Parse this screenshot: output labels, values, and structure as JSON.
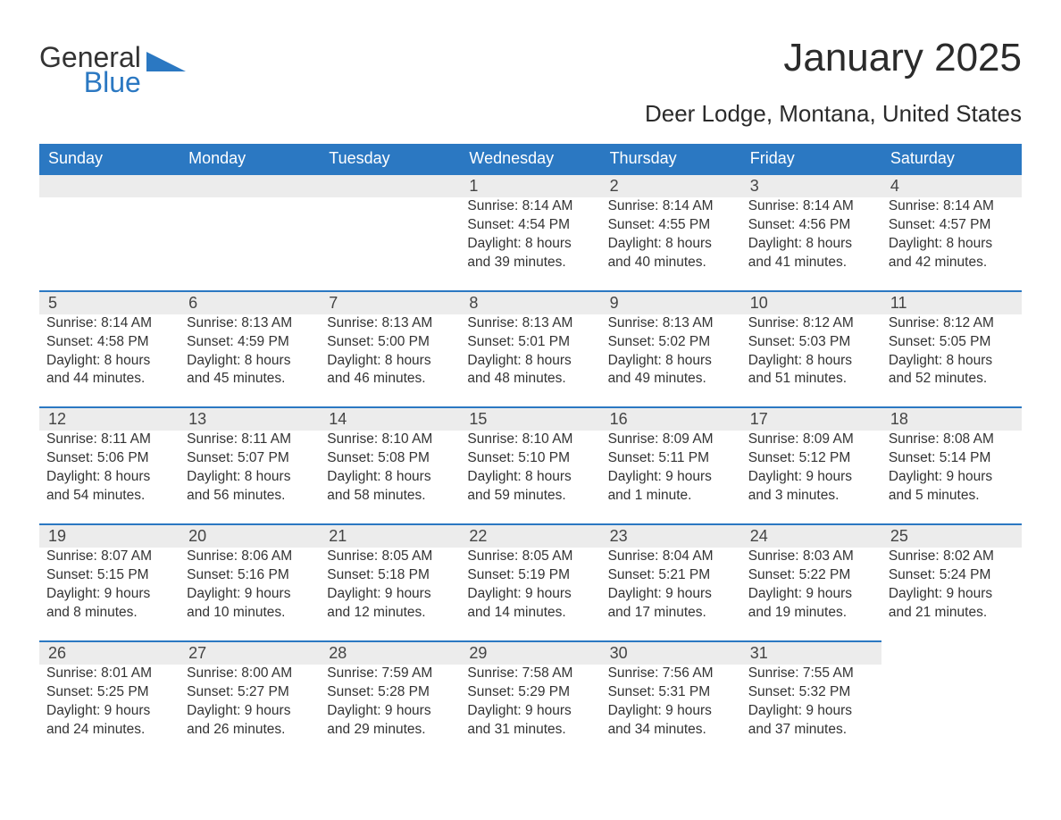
{
  "logo": {
    "word1": "General",
    "word2": "Blue",
    "shape_color": "#2b78c2"
  },
  "title": "January 2025",
  "location": "Deer Lodge, Montana, United States",
  "colors": {
    "header_bg": "#2b78c2",
    "header_text": "#ffffff",
    "daynum_bg": "#ececec",
    "daynum_border": "#2b78c2",
    "body_text": "#333333",
    "page_bg": "#ffffff"
  },
  "day_headers": [
    "Sunday",
    "Monday",
    "Tuesday",
    "Wednesday",
    "Thursday",
    "Friday",
    "Saturday"
  ],
  "weeks": [
    [
      null,
      null,
      null,
      {
        "n": "1",
        "sunrise": "Sunrise: 8:14 AM",
        "sunset": "Sunset: 4:54 PM",
        "day1": "Daylight: 8 hours",
        "day2": "and 39 minutes."
      },
      {
        "n": "2",
        "sunrise": "Sunrise: 8:14 AM",
        "sunset": "Sunset: 4:55 PM",
        "day1": "Daylight: 8 hours",
        "day2": "and 40 minutes."
      },
      {
        "n": "3",
        "sunrise": "Sunrise: 8:14 AM",
        "sunset": "Sunset: 4:56 PM",
        "day1": "Daylight: 8 hours",
        "day2": "and 41 minutes."
      },
      {
        "n": "4",
        "sunrise": "Sunrise: 8:14 AM",
        "sunset": "Sunset: 4:57 PM",
        "day1": "Daylight: 8 hours",
        "day2": "and 42 minutes."
      }
    ],
    [
      {
        "n": "5",
        "sunrise": "Sunrise: 8:14 AM",
        "sunset": "Sunset: 4:58 PM",
        "day1": "Daylight: 8 hours",
        "day2": "and 44 minutes."
      },
      {
        "n": "6",
        "sunrise": "Sunrise: 8:13 AM",
        "sunset": "Sunset: 4:59 PM",
        "day1": "Daylight: 8 hours",
        "day2": "and 45 minutes."
      },
      {
        "n": "7",
        "sunrise": "Sunrise: 8:13 AM",
        "sunset": "Sunset: 5:00 PM",
        "day1": "Daylight: 8 hours",
        "day2": "and 46 minutes."
      },
      {
        "n": "8",
        "sunrise": "Sunrise: 8:13 AM",
        "sunset": "Sunset: 5:01 PM",
        "day1": "Daylight: 8 hours",
        "day2": "and 48 minutes."
      },
      {
        "n": "9",
        "sunrise": "Sunrise: 8:13 AM",
        "sunset": "Sunset: 5:02 PM",
        "day1": "Daylight: 8 hours",
        "day2": "and 49 minutes."
      },
      {
        "n": "10",
        "sunrise": "Sunrise: 8:12 AM",
        "sunset": "Sunset: 5:03 PM",
        "day1": "Daylight: 8 hours",
        "day2": "and 51 minutes."
      },
      {
        "n": "11",
        "sunrise": "Sunrise: 8:12 AM",
        "sunset": "Sunset: 5:05 PM",
        "day1": "Daylight: 8 hours",
        "day2": "and 52 minutes."
      }
    ],
    [
      {
        "n": "12",
        "sunrise": "Sunrise: 8:11 AM",
        "sunset": "Sunset: 5:06 PM",
        "day1": "Daylight: 8 hours",
        "day2": "and 54 minutes."
      },
      {
        "n": "13",
        "sunrise": "Sunrise: 8:11 AM",
        "sunset": "Sunset: 5:07 PM",
        "day1": "Daylight: 8 hours",
        "day2": "and 56 minutes."
      },
      {
        "n": "14",
        "sunrise": "Sunrise: 8:10 AM",
        "sunset": "Sunset: 5:08 PM",
        "day1": "Daylight: 8 hours",
        "day2": "and 58 minutes."
      },
      {
        "n": "15",
        "sunrise": "Sunrise: 8:10 AM",
        "sunset": "Sunset: 5:10 PM",
        "day1": "Daylight: 8 hours",
        "day2": "and 59 minutes."
      },
      {
        "n": "16",
        "sunrise": "Sunrise: 8:09 AM",
        "sunset": "Sunset: 5:11 PM",
        "day1": "Daylight: 9 hours",
        "day2": "and 1 minute."
      },
      {
        "n": "17",
        "sunrise": "Sunrise: 8:09 AM",
        "sunset": "Sunset: 5:12 PM",
        "day1": "Daylight: 9 hours",
        "day2": "and 3 minutes."
      },
      {
        "n": "18",
        "sunrise": "Sunrise: 8:08 AM",
        "sunset": "Sunset: 5:14 PM",
        "day1": "Daylight: 9 hours",
        "day2": "and 5 minutes."
      }
    ],
    [
      {
        "n": "19",
        "sunrise": "Sunrise: 8:07 AM",
        "sunset": "Sunset: 5:15 PM",
        "day1": "Daylight: 9 hours",
        "day2": "and 8 minutes."
      },
      {
        "n": "20",
        "sunrise": "Sunrise: 8:06 AM",
        "sunset": "Sunset: 5:16 PM",
        "day1": "Daylight: 9 hours",
        "day2": "and 10 minutes."
      },
      {
        "n": "21",
        "sunrise": "Sunrise: 8:05 AM",
        "sunset": "Sunset: 5:18 PM",
        "day1": "Daylight: 9 hours",
        "day2": "and 12 minutes."
      },
      {
        "n": "22",
        "sunrise": "Sunrise: 8:05 AM",
        "sunset": "Sunset: 5:19 PM",
        "day1": "Daylight: 9 hours",
        "day2": "and 14 minutes."
      },
      {
        "n": "23",
        "sunrise": "Sunrise: 8:04 AM",
        "sunset": "Sunset: 5:21 PM",
        "day1": "Daylight: 9 hours",
        "day2": "and 17 minutes."
      },
      {
        "n": "24",
        "sunrise": "Sunrise: 8:03 AM",
        "sunset": "Sunset: 5:22 PM",
        "day1": "Daylight: 9 hours",
        "day2": "and 19 minutes."
      },
      {
        "n": "25",
        "sunrise": "Sunrise: 8:02 AM",
        "sunset": "Sunset: 5:24 PM",
        "day1": "Daylight: 9 hours",
        "day2": "and 21 minutes."
      }
    ],
    [
      {
        "n": "26",
        "sunrise": "Sunrise: 8:01 AM",
        "sunset": "Sunset: 5:25 PM",
        "day1": "Daylight: 9 hours",
        "day2": "and 24 minutes."
      },
      {
        "n": "27",
        "sunrise": "Sunrise: 8:00 AM",
        "sunset": "Sunset: 5:27 PM",
        "day1": "Daylight: 9 hours",
        "day2": "and 26 minutes."
      },
      {
        "n": "28",
        "sunrise": "Sunrise: 7:59 AM",
        "sunset": "Sunset: 5:28 PM",
        "day1": "Daylight: 9 hours",
        "day2": "and 29 minutes."
      },
      {
        "n": "29",
        "sunrise": "Sunrise: 7:58 AM",
        "sunset": "Sunset: 5:29 PM",
        "day1": "Daylight: 9 hours",
        "day2": "and 31 minutes."
      },
      {
        "n": "30",
        "sunrise": "Sunrise: 7:56 AM",
        "sunset": "Sunset: 5:31 PM",
        "day1": "Daylight: 9 hours",
        "day2": "and 34 minutes."
      },
      {
        "n": "31",
        "sunrise": "Sunrise: 7:55 AM",
        "sunset": "Sunset: 5:32 PM",
        "day1": "Daylight: 9 hours",
        "day2": "and 37 minutes."
      },
      null
    ]
  ]
}
